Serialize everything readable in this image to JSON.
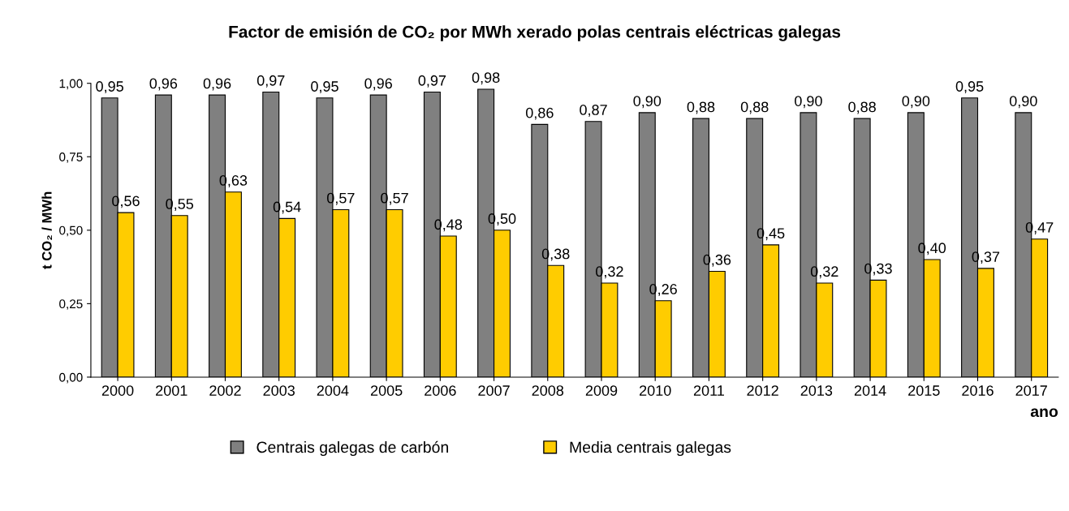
{
  "chart_data": {
    "type": "bar",
    "title": "Factor de emisión de CO₂ por MWh xerado polas centrais eléctricas galegas",
    "ylabel": "t CO₂ / MWh",
    "xlabel": "ano",
    "categories": [
      "2000",
      "2001",
      "2002",
      "2003",
      "2004",
      "2005",
      "2006",
      "2007",
      "2008",
      "2009",
      "2010",
      "2011",
      "2012",
      "2013",
      "2014",
      "2015",
      "2016",
      "2017"
    ],
    "series": [
      {
        "name": "Centrais galegas de carbón",
        "color": "#808080",
        "values": [
          0.95,
          0.96,
          0.96,
          0.97,
          0.95,
          0.96,
          0.97,
          0.98,
          0.86,
          0.87,
          0.9,
          0.88,
          0.88,
          0.9,
          0.88,
          0.9,
          0.95,
          0.9
        ],
        "value_labels": [
          "0,95",
          "0,96",
          "0,96",
          "0,97",
          "0,95",
          "0,96",
          "0,97",
          "0,98",
          "0,86",
          "0,87",
          "0,90",
          "0,88",
          "0,88",
          "0,90",
          "0,88",
          "0,90",
          "0,95",
          "0,90"
        ]
      },
      {
        "name": "Media centrais galegas",
        "color": "#ffcc00",
        "values": [
          0.56,
          0.55,
          0.63,
          0.54,
          0.57,
          0.57,
          0.48,
          0.5,
          0.38,
          0.32,
          0.26,
          0.36,
          0.45,
          0.32,
          0.33,
          0.4,
          0.37,
          0.47
        ],
        "value_labels": [
          "0,56",
          "0,55",
          "0,63",
          "0,54",
          "0,57",
          "0,57",
          "0,48",
          "0,50",
          "0,38",
          "0,32",
          "0,26",
          "0,36",
          "0,45",
          "0,32",
          "0,33",
          "0,40",
          "0,37",
          "0,47"
        ]
      }
    ],
    "ylim": [
      0,
      1
    ],
    "yticks": [
      {
        "value": 0,
        "label": "0,00"
      },
      {
        "value": 0.25,
        "label": "0,25"
      },
      {
        "value": 0.5,
        "label": "0,50"
      },
      {
        "value": 0.75,
        "label": "0,75"
      },
      {
        "value": 1,
        "label": "1,00"
      }
    ],
    "grid": false,
    "legend": "bottom"
  }
}
